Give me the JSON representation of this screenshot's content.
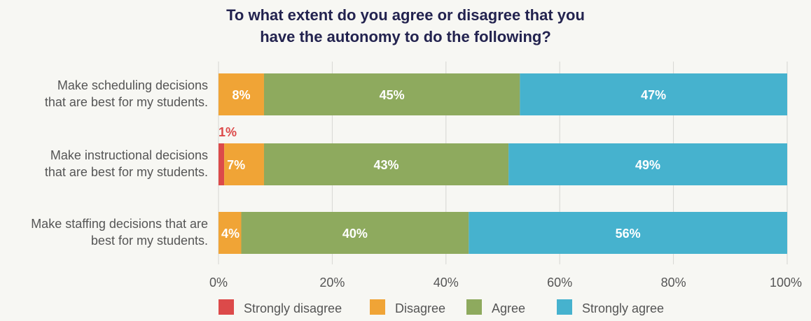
{
  "chart_data": {
    "type": "bar",
    "orientation": "horizontal",
    "stacked": true,
    "title_lines": [
      "To what extent do you agree or disagree that you",
      "have the autonomy to do the following?"
    ],
    "categories": [
      [
        "Make scheduling decisions",
        "that are best for my students."
      ],
      [
        "Make instructional decisions",
        "that are best for my students."
      ],
      [
        "Make staffing decisions that are",
        "best for my students."
      ]
    ],
    "series": [
      {
        "name": "Strongly disagree",
        "color": "#dc4a4a",
        "values": [
          0,
          1,
          0
        ],
        "labels": [
          "",
          "1%",
          ""
        ]
      },
      {
        "name": "Disagree",
        "color": "#f0a436",
        "values": [
          8,
          7,
          4
        ],
        "labels": [
          "8%",
          "7%",
          "4%"
        ]
      },
      {
        "name": "Agree",
        "color": "#8eaa5e",
        "values": [
          45,
          43,
          40
        ],
        "labels": [
          "45%",
          "43%",
          "40%"
        ]
      },
      {
        "name": "Strongly agree",
        "color": "#46b2ce",
        "values": [
          47,
          49,
          56
        ],
        "labels": [
          "47%",
          "49%",
          "56%"
        ]
      }
    ],
    "xlim": [
      0,
      100
    ],
    "xticks": [
      "0%",
      "20%",
      "40%",
      "60%",
      "80%",
      "100%"
    ],
    "grid": true,
    "legend_position": "bottom"
  }
}
